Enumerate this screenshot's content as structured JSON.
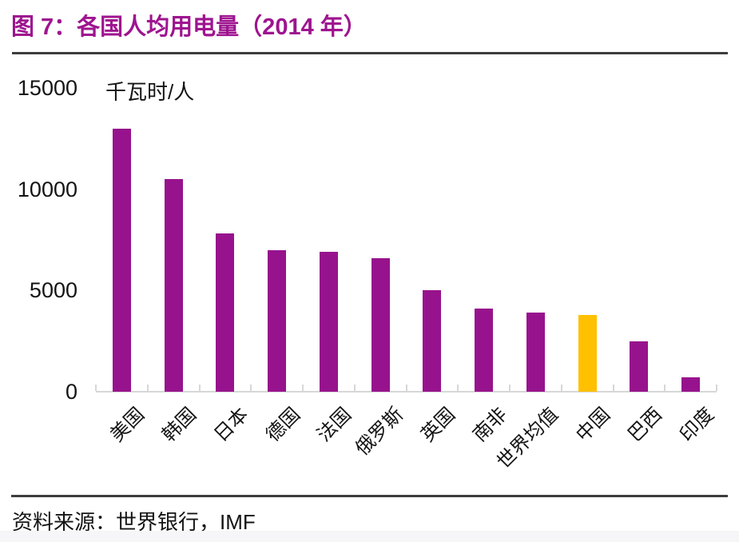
{
  "chart_data": {
    "type": "bar",
    "title": "图 7：各国人均用电量（2014 年）",
    "unit_label": "千瓦时/人",
    "categories": [
      "美国",
      "韩国",
      "日本",
      "德国",
      "法国",
      "俄罗斯",
      "英国",
      "南非",
      "世界均值",
      "中国",
      "巴西",
      "印度"
    ],
    "values": [
      13000,
      10500,
      7800,
      7000,
      6900,
      6600,
      5000,
      4100,
      3900,
      3800,
      2500,
      700
    ],
    "xlabel": "",
    "ylabel": "千瓦时/人",
    "ylim": [
      0,
      15000
    ],
    "yticks": [
      0,
      5000,
      10000,
      15000
    ],
    "grid": false,
    "legend": false,
    "bar_color": "#97138d",
    "highlight_index": 9,
    "highlight_color": "#ffc000",
    "axis_color": "#d7d7d7",
    "title_color": "#9e148f",
    "source": "资料来源：世界银行，IMF"
  }
}
